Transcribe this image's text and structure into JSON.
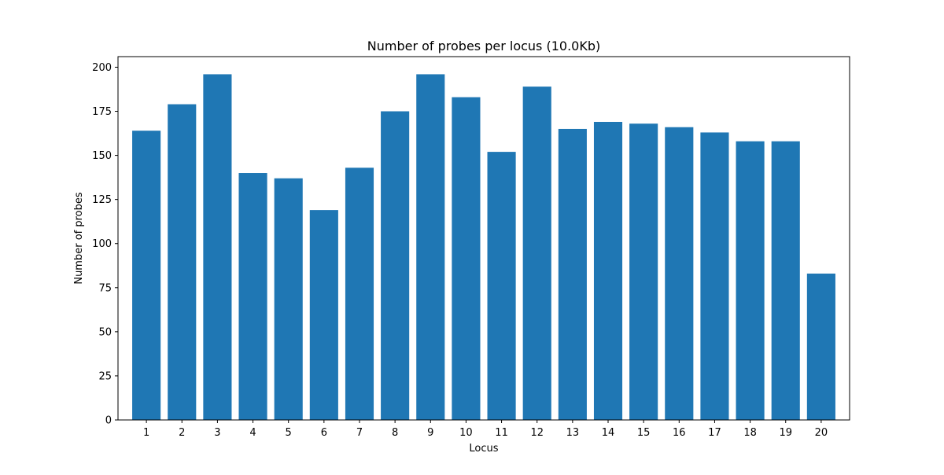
{
  "chart_data": {
    "type": "bar",
    "title": "Number of probes per locus (10.0Kb)",
    "xlabel": "Locus",
    "ylabel": "Number of probes",
    "categories": [
      "1",
      "2",
      "3",
      "4",
      "5",
      "6",
      "7",
      "8",
      "9",
      "10",
      "11",
      "12",
      "13",
      "14",
      "15",
      "16",
      "17",
      "18",
      "19",
      "20"
    ],
    "values": [
      164,
      179,
      196,
      140,
      137,
      119,
      143,
      175,
      196,
      183,
      152,
      189,
      165,
      169,
      168,
      166,
      163,
      158,
      158,
      83
    ],
    "ylim": [
      0,
      206
    ],
    "yticks": [
      0,
      25,
      50,
      75,
      100,
      125,
      150,
      175,
      200
    ],
    "bar_color": "#1f77b4",
    "grid": false,
    "legend": "none"
  }
}
